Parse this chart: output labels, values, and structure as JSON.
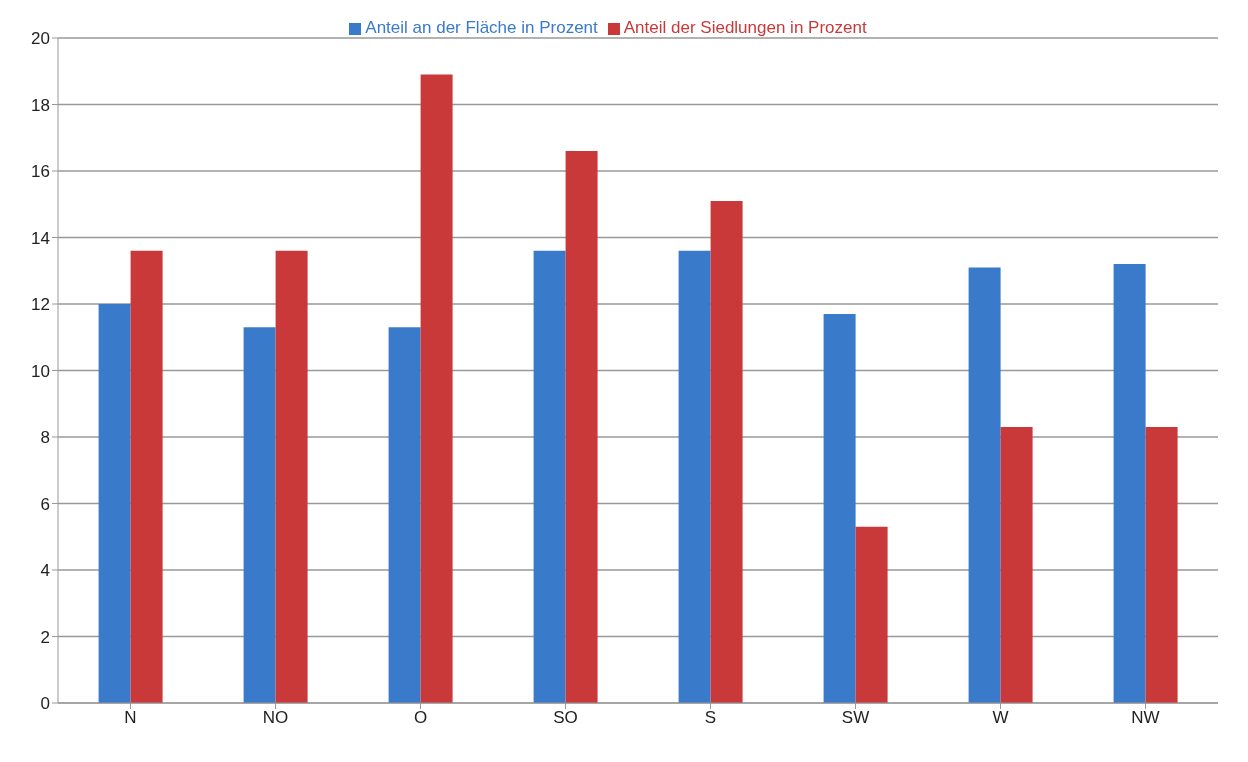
{
  "chart_data": {
    "type": "bar",
    "categories": [
      "N",
      "NO",
      "O",
      "SO",
      "S",
      "SW",
      "W",
      "NW"
    ],
    "series": [
      {
        "name": "Anteil an der Fläche in Prozent",
        "color": "#3a7acb",
        "values": [
          12.0,
          11.3,
          11.3,
          13.6,
          13.6,
          11.7,
          13.1,
          13.2
        ]
      },
      {
        "name": "Anteil der Siedlungen in Prozent",
        "color": "#c9393a",
        "values": [
          13.6,
          13.6,
          18.9,
          16.6,
          15.1,
          5.3,
          8.3,
          8.3
        ]
      }
    ],
    "ylim": [
      0,
      20
    ],
    "yticks": [
      0,
      2,
      4,
      6,
      8,
      10,
      12,
      14,
      16,
      18,
      20
    ],
    "grid": "y",
    "legend": "top"
  }
}
